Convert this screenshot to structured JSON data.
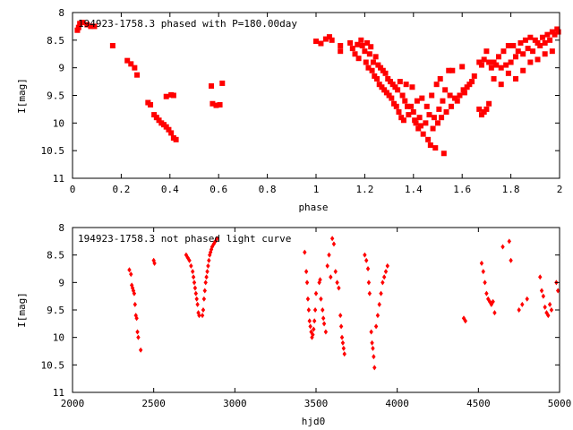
{
  "chart_data": [
    {
      "type": "scatter",
      "title": "194923-1758.3 phased with P=180.00day",
      "xlabel": "phase",
      "ylabel": "I[mag]",
      "xlim": [
        0,
        2
      ],
      "ylim": [
        11,
        8
      ],
      "y_inverted": true,
      "grid": false,
      "legend": "none",
      "x_ticks": [
        "0",
        "0.2",
        "0.4",
        "0.6",
        "0.8",
        "1",
        "1.2",
        "1.4",
        "1.6",
        "1.8",
        "2"
      ],
      "y_ticks": [
        "8",
        "8.5",
        "9",
        "9.5",
        "10",
        "10.5",
        "11"
      ],
      "marker": "filled-square",
      "color": "#ff0000",
      "points": [
        [
          0.02,
          8.32
        ],
        [
          0.025,
          8.27
        ],
        [
          0.03,
          8.2
        ],
        [
          0.04,
          8.18
        ],
        [
          0.06,
          8.22
        ],
        [
          0.075,
          8.25
        ],
        [
          0.09,
          8.25
        ],
        [
          0.165,
          8.6
        ],
        [
          0.225,
          8.87
        ],
        [
          0.24,
          8.93
        ],
        [
          0.255,
          9.0
        ],
        [
          0.265,
          9.13
        ],
        [
          0.31,
          9.63
        ],
        [
          0.32,
          9.67
        ],
        [
          0.335,
          9.85
        ],
        [
          0.345,
          9.9
        ],
        [
          0.355,
          9.95
        ],
        [
          0.365,
          10.0
        ],
        [
          0.375,
          10.03
        ],
        [
          0.385,
          10.07
        ],
        [
          0.395,
          10.12
        ],
        [
          0.405,
          10.18
        ],
        [
          0.415,
          10.27
        ],
        [
          0.425,
          10.3
        ],
        [
          0.385,
          9.52
        ],
        [
          0.405,
          9.49
        ],
        [
          0.415,
          9.5
        ],
        [
          0.57,
          9.33
        ],
        [
          0.615,
          9.28
        ],
        [
          0.575,
          9.65
        ],
        [
          0.59,
          9.68
        ],
        [
          0.605,
          9.67
        ],
        [
          1.0,
          8.52
        ],
        [
          1.02,
          8.56
        ],
        [
          1.04,
          8.48
        ],
        [
          1.055,
          8.44
        ],
        [
          1.065,
          8.5
        ],
        [
          1.1,
          8.6
        ],
        [
          1.1,
          8.7
        ],
        [
          1.14,
          8.55
        ],
        [
          1.15,
          8.65
        ],
        [
          1.16,
          8.75
        ],
        [
          1.17,
          8.58
        ],
        [
          1.175,
          8.83
        ],
        [
          1.185,
          8.5
        ],
        [
          1.19,
          8.6
        ],
        [
          1.2,
          8.7
        ],
        [
          1.205,
          8.9
        ],
        [
          1.21,
          8.55
        ],
        [
          1.215,
          9.0
        ],
        [
          1.22,
          8.75
        ],
        [
          1.225,
          8.62
        ],
        [
          1.23,
          9.05
        ],
        [
          1.235,
          8.9
        ],
        [
          1.24,
          9.15
        ],
        [
          1.245,
          8.8
        ],
        [
          1.25,
          9.2
        ],
        [
          1.255,
          8.95
        ],
        [
          1.26,
          9.3
        ],
        [
          1.265,
          9.0
        ],
        [
          1.27,
          9.35
        ],
        [
          1.275,
          9.05
        ],
        [
          1.28,
          9.4
        ],
        [
          1.285,
          9.1
        ],
        [
          1.29,
          9.45
        ],
        [
          1.295,
          9.2
        ],
        [
          1.3,
          9.5
        ],
        [
          1.305,
          9.25
        ],
        [
          1.31,
          9.55
        ],
        [
          1.315,
          9.3
        ],
        [
          1.32,
          9.65
        ],
        [
          1.325,
          9.35
        ],
        [
          1.33,
          9.7
        ],
        [
          1.335,
          9.4
        ],
        [
          1.34,
          9.8
        ],
        [
          1.345,
          9.25
        ],
        [
          1.35,
          9.9
        ],
        [
          1.355,
          9.5
        ],
        [
          1.36,
          9.95
        ],
        [
          1.365,
          9.6
        ],
        [
          1.37,
          9.3
        ],
        [
          1.375,
          9.7
        ],
        [
          1.38,
          9.85
        ],
        [
          1.39,
          9.7
        ],
        [
          1.395,
          9.35
        ],
        [
          1.4,
          9.8
        ],
        [
          1.405,
          9.95
        ],
        [
          1.41,
          10.0
        ],
        [
          1.415,
          9.6
        ],
        [
          1.42,
          10.1
        ],
        [
          1.425,
          9.9
        ],
        [
          1.43,
          10.05
        ],
        [
          1.435,
          9.55
        ],
        [
          1.44,
          10.2
        ],
        [
          1.45,
          10.0
        ],
        [
          1.455,
          9.7
        ],
        [
          1.46,
          10.3
        ],
        [
          1.465,
          9.85
        ],
        [
          1.47,
          10.4
        ],
        [
          1.475,
          9.5
        ],
        [
          1.48,
          10.1
        ],
        [
          1.485,
          9.9
        ],
        [
          1.49,
          10.45
        ],
        [
          1.495,
          9.3
        ],
        [
          1.5,
          10.0
        ],
        [
          1.505,
          9.75
        ],
        [
          1.51,
          9.2
        ],
        [
          1.515,
          9.9
        ],
        [
          1.52,
          9.6
        ],
        [
          1.525,
          10.55
        ],
        [
          1.53,
          9.4
        ],
        [
          1.535,
          9.8
        ],
        [
          1.545,
          9.05
        ],
        [
          1.55,
          9.5
        ],
        [
          1.555,
          9.7
        ],
        [
          1.56,
          9.05
        ],
        [
          1.57,
          9.55
        ],
        [
          1.58,
          9.6
        ],
        [
          1.59,
          9.5
        ],
        [
          1.6,
          8.98
        ],
        [
          1.605,
          9.4
        ],
        [
          1.61,
          9.45
        ],
        [
          1.62,
          9.35
        ],
        [
          1.63,
          9.3
        ],
        [
          1.64,
          9.25
        ],
        [
          1.65,
          9.15
        ],
        [
          1.67,
          9.75
        ],
        [
          1.68,
          9.85
        ],
        [
          1.69,
          9.8
        ],
        [
          1.7,
          9.75
        ],
        [
          1.71,
          9.65
        ],
        [
          1.67,
          8.9
        ],
        [
          1.68,
          8.95
        ],
        [
          1.69,
          8.85
        ],
        [
          1.7,
          8.7
        ],
        [
          1.71,
          8.9
        ],
        [
          1.72,
          9.0
        ],
        [
          1.73,
          8.9
        ],
        [
          1.74,
          8.95
        ],
        [
          1.75,
          8.8
        ],
        [
          1.76,
          9.0
        ],
        [
          1.77,
          8.7
        ],
        [
          1.78,
          8.95
        ],
        [
          1.79,
          8.6
        ],
        [
          1.8,
          8.9
        ],
        [
          1.81,
          8.6
        ],
        [
          1.82,
          8.8
        ],
        [
          1.83,
          8.7
        ],
        [
          1.84,
          8.55
        ],
        [
          1.85,
          8.75
        ],
        [
          1.86,
          8.5
        ],
        [
          1.87,
          8.65
        ],
        [
          1.88,
          8.45
        ],
        [
          1.89,
          8.7
        ],
        [
          1.9,
          8.5
        ],
        [
          1.91,
          8.55
        ],
        [
          1.92,
          8.6
        ],
        [
          1.93,
          8.45
        ],
        [
          1.94,
          8.55
        ],
        [
          1.95,
          8.4
        ],
        [
          1.96,
          8.5
        ],
        [
          1.97,
          8.35
        ],
        [
          1.98,
          8.4
        ],
        [
          1.99,
          8.3
        ],
        [
          1.995,
          8.35
        ],
        [
          1.73,
          9.2
        ],
        [
          1.76,
          9.3
        ],
        [
          1.79,
          9.1
        ],
        [
          1.82,
          9.2
        ],
        [
          1.85,
          9.05
        ],
        [
          1.88,
          8.9
        ],
        [
          1.91,
          8.85
        ],
        [
          1.94,
          8.75
        ],
        [
          1.97,
          8.7
        ]
      ]
    },
    {
      "type": "scatter",
      "title": "194923-1758.3 not phased light curve",
      "xlabel": "hjd0",
      "ylabel": "I[mag]",
      "xlim": [
        2000,
        5000
      ],
      "ylim": [
        11,
        8
      ],
      "y_inverted": true,
      "grid": false,
      "legend": "none",
      "x_ticks": [
        "2000",
        "2500",
        "3000",
        "3500",
        "4000",
        "4500",
        "5000"
      ],
      "y_ticks": [
        "8",
        "8.5",
        "9",
        "9.5",
        "10",
        "10.5",
        "11"
      ],
      "marker": "filled-diamond",
      "color": "#ff0000",
      "points": [
        [
          2350,
          8.77
        ],
        [
          2360,
          8.85
        ],
        [
          2365,
          9.05
        ],
        [
          2370,
          9.1
        ],
        [
          2375,
          9.15
        ],
        [
          2380,
          9.2
        ],
        [
          2385,
          9.4
        ],
        [
          2390,
          9.6
        ],
        [
          2395,
          9.65
        ],
        [
          2400,
          9.9
        ],
        [
          2405,
          10.0
        ],
        [
          2420,
          10.23
        ],
        [
          2500,
          8.6
        ],
        [
          2505,
          8.65
        ],
        [
          2700,
          8.5
        ],
        [
          2710,
          8.55
        ],
        [
          2720,
          8.6
        ],
        [
          2730,
          8.7
        ],
        [
          2740,
          8.8
        ],
        [
          2745,
          8.9
        ],
        [
          2750,
          9.0
        ],
        [
          2755,
          9.1
        ],
        [
          2760,
          9.2
        ],
        [
          2765,
          9.3
        ],
        [
          2770,
          9.4
        ],
        [
          2775,
          9.55
        ],
        [
          2780,
          9.6
        ],
        [
          2800,
          9.6
        ],
        [
          2805,
          9.5
        ],
        [
          2810,
          9.3
        ],
        [
          2815,
          9.15
        ],
        [
          2820,
          9.0
        ],
        [
          2825,
          8.9
        ],
        [
          2830,
          8.8
        ],
        [
          2835,
          8.7
        ],
        [
          2840,
          8.6
        ],
        [
          2845,
          8.5
        ],
        [
          2850,
          8.45
        ],
        [
          2855,
          8.4
        ],
        [
          2860,
          8.35
        ],
        [
          2870,
          8.3
        ],
        [
          2880,
          8.25
        ],
        [
          2890,
          8.2
        ],
        [
          3430,
          8.45
        ],
        [
          3440,
          8.8
        ],
        [
          3445,
          9.0
        ],
        [
          3450,
          9.3
        ],
        [
          3455,
          9.5
        ],
        [
          3460,
          9.7
        ],
        [
          3465,
          9.8
        ],
        [
          3470,
          9.9
        ],
        [
          3475,
          10.0
        ],
        [
          3480,
          9.95
        ],
        [
          3485,
          9.85
        ],
        [
          3490,
          9.7
        ],
        [
          3495,
          9.5
        ],
        [
          3500,
          9.2
        ],
        [
          3520,
          9.0
        ],
        [
          3525,
          8.95
        ],
        [
          3530,
          9.3
        ],
        [
          3540,
          9.5
        ],
        [
          3545,
          9.65
        ],
        [
          3550,
          9.75
        ],
        [
          3560,
          9.9
        ],
        [
          3570,
          8.7
        ],
        [
          3580,
          8.5
        ],
        [
          3590,
          8.9
        ],
        [
          3600,
          8.2
        ],
        [
          3610,
          8.3
        ],
        [
          3620,
          8.8
        ],
        [
          3630,
          9.0
        ],
        [
          3640,
          9.1
        ],
        [
          3650,
          9.6
        ],
        [
          3655,
          9.8
        ],
        [
          3660,
          10.0
        ],
        [
          3665,
          10.1
        ],
        [
          3670,
          10.2
        ],
        [
          3675,
          10.3
        ],
        [
          3800,
          8.5
        ],
        [
          3810,
          8.6
        ],
        [
          3820,
          8.75
        ],
        [
          3825,
          9.0
        ],
        [
          3830,
          9.2
        ],
        [
          3840,
          9.9
        ],
        [
          3845,
          10.1
        ],
        [
          3850,
          10.2
        ],
        [
          3855,
          10.35
        ],
        [
          3860,
          10.55
        ],
        [
          3870,
          9.8
        ],
        [
          3880,
          9.6
        ],
        [
          3890,
          9.4
        ],
        [
          3900,
          9.2
        ],
        [
          3910,
          9.0
        ],
        [
          3920,
          8.9
        ],
        [
          3930,
          8.8
        ],
        [
          3940,
          8.7
        ],
        [
          4410,
          9.65
        ],
        [
          4420,
          9.7
        ],
        [
          4520,
          8.65
        ],
        [
          4530,
          8.8
        ],
        [
          4540,
          9.0
        ],
        [
          4550,
          9.2
        ],
        [
          4560,
          9.3
        ],
        [
          4570,
          9.35
        ],
        [
          4580,
          9.4
        ],
        [
          4590,
          9.35
        ],
        [
          4600,
          9.55
        ],
        [
          4650,
          8.35
        ],
        [
          4690,
          8.25
        ],
        [
          4700,
          8.6
        ],
        [
          4750,
          9.5
        ],
        [
          4770,
          9.4
        ],
        [
          4800,
          9.3
        ],
        [
          4880,
          8.9
        ],
        [
          4890,
          9.15
        ],
        [
          4900,
          9.25
        ],
        [
          4910,
          9.45
        ],
        [
          4920,
          9.55
        ],
        [
          4930,
          9.6
        ],
        [
          4940,
          9.4
        ],
        [
          4950,
          9.5
        ],
        [
          4980,
          9.0
        ],
        [
          4990,
          9.15
        ]
      ]
    }
  ]
}
